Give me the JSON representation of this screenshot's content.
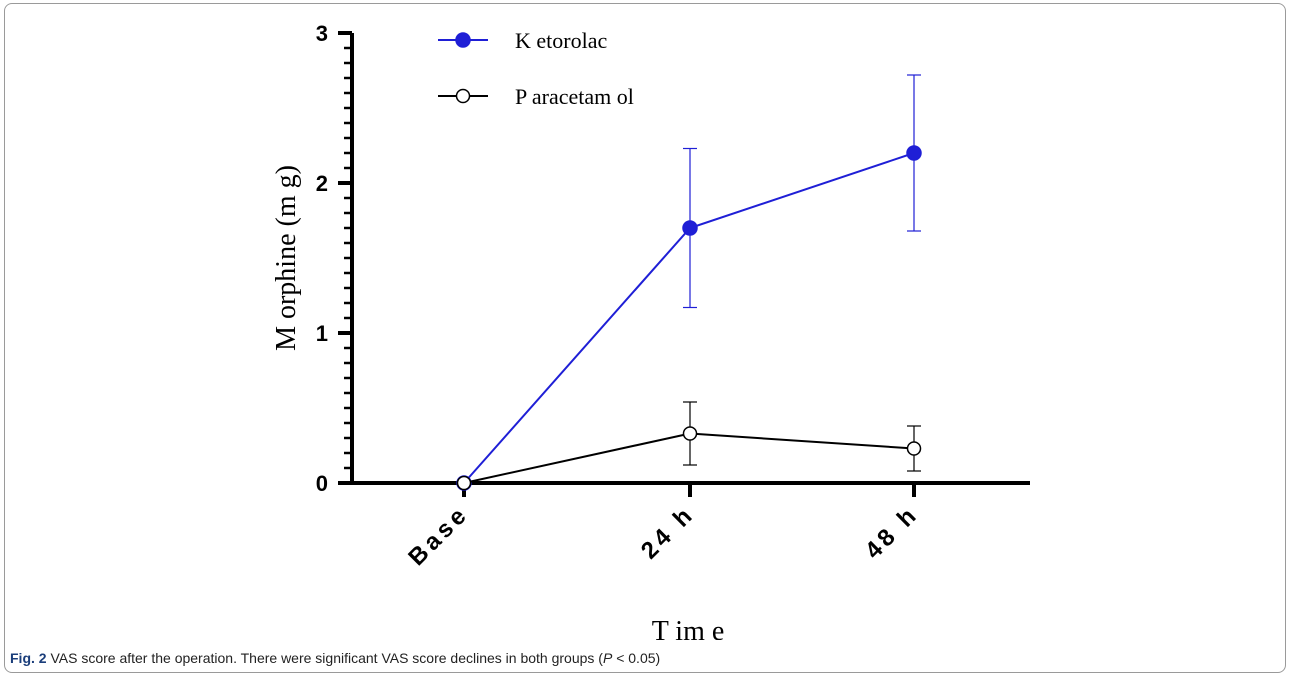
{
  "chart_data": {
    "type": "line",
    "categories": [
      "Base",
      "24 h",
      "48 h"
    ],
    "xlabel": "T im e",
    "ylabel": "M orphine (m g)",
    "ylim": [
      0,
      3
    ],
    "yticks": [
      "0",
      "1",
      "2",
      "3"
    ],
    "grid": false,
    "legend_position": "top",
    "series": [
      {
        "name": "K etorolac",
        "values": [
          0,
          1.7,
          2.2
        ],
        "error": [
          0,
          0.53,
          0.52
        ],
        "color": "#1f1fd6",
        "marker": "filled-circle"
      },
      {
        "name": "P aracetam ol",
        "values": [
          0,
          0.33,
          0.23
        ],
        "error": [
          0,
          0.21,
          0.15
        ],
        "color": "#000000",
        "marker": "open-circle"
      }
    ]
  },
  "caption": {
    "label": "Fig. 2",
    "text_before": " VAS score after the operation. There were significant VAS score declines in both groups (",
    "p": "P",
    "text_after": " < 0.05)"
  }
}
